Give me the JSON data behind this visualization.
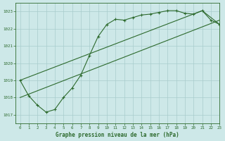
{
  "title": "Graphe pression niveau de la mer (hPa)",
  "bg_color": "#cde8e8",
  "line_color": "#2d6a2d",
  "grid_color": "#a8cccc",
  "xlim": [
    -0.5,
    23
  ],
  "ylim": [
    1016.5,
    1023.5
  ],
  "yticks": [
    1017,
    1018,
    1019,
    1020,
    1021,
    1022,
    1023
  ],
  "xticks": [
    0,
    1,
    2,
    3,
    4,
    5,
    6,
    7,
    8,
    9,
    10,
    11,
    12,
    13,
    14,
    15,
    16,
    17,
    18,
    19,
    20,
    21,
    22,
    23
  ],
  "series1_x": [
    0,
    1,
    2,
    3,
    4,
    5,
    6,
    7,
    8,
    9,
    10,
    11,
    12,
    13,
    14,
    15,
    16,
    17,
    18,
    19,
    20,
    21,
    22,
    23
  ],
  "series1_y": [
    1019.0,
    1018.1,
    1017.55,
    1017.15,
    1017.3,
    1018.0,
    1018.55,
    1019.3,
    1020.45,
    1021.55,
    1022.25,
    1022.55,
    1022.5,
    1022.65,
    1022.8,
    1022.85,
    1022.95,
    1023.05,
    1023.05,
    1022.9,
    1022.85,
    1023.05,
    1022.5,
    1022.25
  ],
  "series2_x": [
    0,
    21,
    23
  ],
  "series2_y": [
    1019.0,
    1023.05,
    1022.25
  ],
  "series3_x": [
    0,
    23
  ],
  "series3_y": [
    1018.0,
    1022.5
  ]
}
